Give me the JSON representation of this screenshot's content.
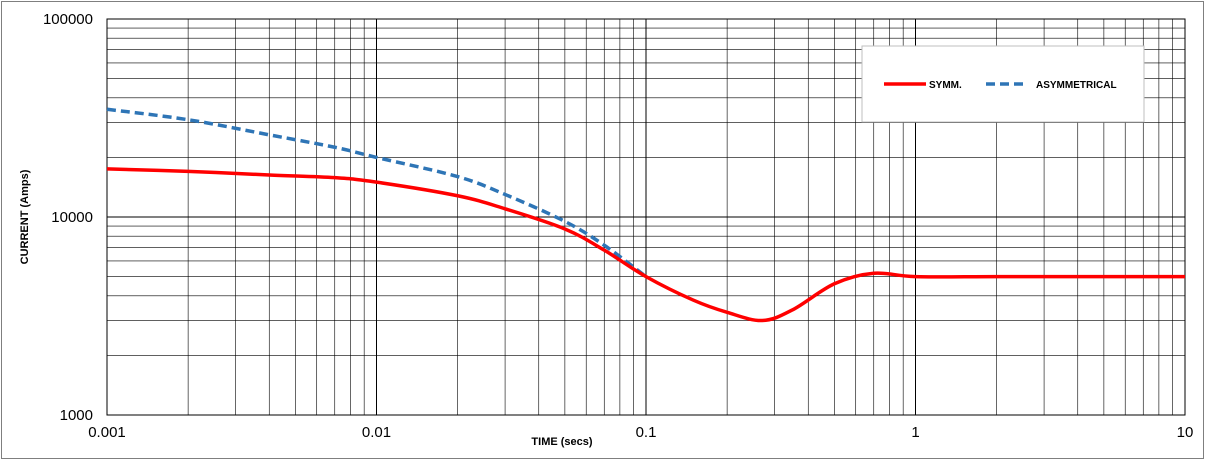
{
  "chart_data": {
    "type": "line",
    "title": "",
    "xlabel": "TIME (secs)",
    "ylabel": "CURRENT (Amps)",
    "x_scale": "log",
    "y_scale": "log",
    "xlim": [
      0.001,
      10
    ],
    "ylim": [
      1000,
      100000
    ],
    "x_ticks": [
      "0.001",
      "0.01",
      "0.1",
      "1",
      "10"
    ],
    "y_ticks": [
      "1000",
      "10000",
      "100000"
    ],
    "grid": true,
    "legend_position": "top-right",
    "series": [
      {
        "name": "SYMM.",
        "color": "#ff0000",
        "style": "solid",
        "x": [
          0.001,
          0.002,
          0.004,
          0.007,
          0.01,
          0.02,
          0.03,
          0.05,
          0.07,
          0.1,
          0.15,
          0.2,
          0.27,
          0.35,
          0.5,
          0.7,
          1,
          2,
          5,
          10
        ],
        "y": [
          17500,
          17000,
          16300,
          15800,
          15000,
          12800,
          11000,
          8700,
          6800,
          5000,
          3800,
          3300,
          3000,
          3400,
          4600,
          5200,
          5000,
          5000,
          5000,
          5000
        ]
      },
      {
        "name": "ASYMMETRICAL",
        "color": "#2e75b6",
        "style": "dashed",
        "x": [
          0.001,
          0.002,
          0.004,
          0.007,
          0.01,
          0.02,
          0.03,
          0.05,
          0.07,
          0.1
        ],
        "y": [
          35000,
          31000,
          26000,
          22500,
          20000,
          16000,
          13000,
          9500,
          7200,
          5000
        ]
      }
    ]
  }
}
